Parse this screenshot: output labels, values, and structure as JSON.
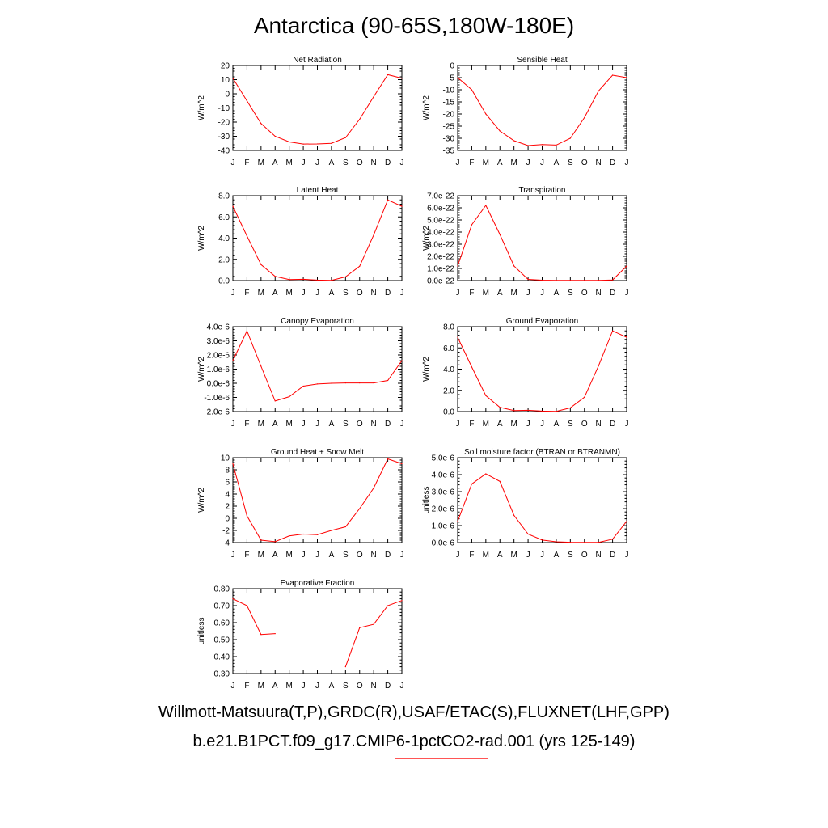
{
  "title": "Antarctica (90-65S,180W-180E)",
  "footer": {
    "line1": "Willmott-Matsuura(T,P),GRDC(R),USAF/ETAC(S),FLUXNET(LHF,GPP)",
    "line2": "b.e21.B1PCT.f09_g17.CMIP6-1pctCO2-rad.001 (yrs 125-149)"
  },
  "colors": {
    "series": "#ff0000",
    "axes": "#000000",
    "obs_legend": "#6060ff",
    "model_legend": "#ff5555"
  },
  "chart_data": [
    {
      "type": "line",
      "title": "Net Radiation",
      "ylabel": "W/m^2",
      "x": [
        "J",
        "F",
        "M",
        "A",
        "M",
        "J",
        "J",
        "A",
        "S",
        "O",
        "N",
        "D",
        "J"
      ],
      "ylim": [
        -40,
        20
      ],
      "yticks": [
        20,
        10,
        0,
        -10,
        -20,
        -30,
        -40
      ],
      "yticklabels": [
        "20",
        "10",
        "0",
        "-10",
        "-20",
        "-30",
        "-40"
      ],
      "series": [
        {
          "values": [
            11,
            -5,
            -21,
            -30,
            -34,
            -35.5,
            -35.4,
            -35,
            -31,
            -18,
            -2,
            13.5,
            11
          ]
        }
      ]
    },
    {
      "type": "line",
      "title": "Sensible Heat",
      "ylabel": "W/m^2",
      "x": [
        "J",
        "F",
        "M",
        "A",
        "M",
        "J",
        "J",
        "A",
        "S",
        "O",
        "N",
        "D",
        "J"
      ],
      "ylim": [
        -35,
        0
      ],
      "yticks": [
        0,
        -5,
        -10,
        -15,
        -20,
        -25,
        -30,
        -35
      ],
      "yticklabels": [
        "0",
        "-5",
        "-10",
        "-15",
        "-20",
        "-25",
        "-30",
        "-35"
      ],
      "series": [
        {
          "values": [
            -5,
            -10,
            -20,
            -27,
            -31,
            -33,
            -32.6,
            -32.8,
            -30,
            -21.5,
            -10.5,
            -4,
            -5
          ]
        }
      ]
    },
    {
      "type": "line",
      "title": "Latent Heat",
      "ylabel": "W/m^2",
      "x": [
        "J",
        "F",
        "M",
        "A",
        "M",
        "J",
        "J",
        "A",
        "S",
        "O",
        "N",
        "D",
        "J"
      ],
      "ylim": [
        0,
        8
      ],
      "yticks": [
        8,
        6,
        4,
        2,
        0
      ],
      "yticklabels": [
        "8.0",
        "6.0",
        "4.0",
        "2.0",
        "0.0"
      ],
      "series": [
        {
          "values": [
            7.0,
            4.2,
            1.5,
            0.4,
            0.1,
            0.12,
            0.05,
            0.02,
            0.35,
            1.35,
            4.3,
            7.6,
            7.0
          ]
        }
      ]
    },
    {
      "type": "line",
      "title": "Transpiration",
      "ylabel": "W/m^2",
      "x": [
        "J",
        "F",
        "M",
        "A",
        "M",
        "J",
        "J",
        "A",
        "S",
        "O",
        "N",
        "D",
        "J"
      ],
      "ylim": [
        0,
        7e-22
      ],
      "yticks": [
        7e-22,
        6e-22,
        5e-22,
        4e-22,
        3e-22,
        2e-22,
        1e-22,
        0
      ],
      "yticklabels": [
        "7.0e-22",
        "6.0e-22",
        "5.0e-22",
        "4.0e-22",
        "3.0e-22",
        "2.0e-22",
        "1.0e-22",
        "0.0e-22"
      ],
      "series": [
        {
          "values": [
            1.2e-22,
            4.6e-22,
            6.2e-22,
            3.8e-22,
            1.2e-22,
            1e-23,
            3e-24,
            2e-24,
            2e-24,
            2e-24,
            2e-24,
            5e-24,
            1.2e-22
          ]
        }
      ]
    },
    {
      "type": "line",
      "title": "Canopy Evaporation",
      "ylabel": "W/m^2",
      "x": [
        "J",
        "F",
        "M",
        "A",
        "M",
        "J",
        "J",
        "A",
        "S",
        "O",
        "N",
        "D",
        "J"
      ],
      "ylim": [
        -2e-06,
        4e-06
      ],
      "yticks": [
        4e-06,
        3e-06,
        2e-06,
        1e-06,
        0,
        -1e-06,
        -2e-06
      ],
      "yticklabels": [
        "4.0e-6",
        "3.0e-6",
        "2.0e-6",
        "1.0e-6",
        "0.0e-6",
        "-1.0e-6",
        "-2.0e-6"
      ],
      "series": [
        {
          "values": [
            1.6e-06,
            3.7e-06,
            1.2e-06,
            -1.25e-06,
            -9.5e-07,
            -2e-07,
            -5e-08,
            0.0,
            2e-08,
            2e-08,
            2e-08,
            2e-07,
            1.6e-06
          ]
        }
      ]
    },
    {
      "type": "line",
      "title": "Ground Evaporation",
      "ylabel": "W/m^2",
      "x": [
        "J",
        "F",
        "M",
        "A",
        "M",
        "J",
        "J",
        "A",
        "S",
        "O",
        "N",
        "D",
        "J"
      ],
      "ylim": [
        0,
        8
      ],
      "yticks": [
        8,
        6,
        4,
        2,
        0
      ],
      "yticklabels": [
        "8.0",
        "6.0",
        "4.0",
        "2.0",
        "0.0"
      ],
      "series": [
        {
          "values": [
            7.0,
            4.2,
            1.5,
            0.4,
            0.1,
            0.12,
            0.05,
            0.02,
            0.35,
            1.35,
            4.3,
            7.6,
            7.0
          ]
        }
      ]
    },
    {
      "type": "line",
      "title": "Ground Heat + Snow Melt",
      "ylabel": "W/m^2",
      "x": [
        "J",
        "F",
        "M",
        "A",
        "M",
        "J",
        "J",
        "A",
        "S",
        "O",
        "N",
        "D",
        "J"
      ],
      "ylim": [
        -4,
        10
      ],
      "yticks": [
        10,
        8,
        6,
        4,
        2,
        0,
        -2,
        -4
      ],
      "yticklabels": [
        "10",
        "8",
        "6",
        "4",
        "2",
        "0",
        "-2",
        "-4"
      ],
      "series": [
        {
          "values": [
            9.0,
            0.4,
            -3.6,
            -3.85,
            -2.9,
            -2.6,
            -2.7,
            -2.0,
            -1.4,
            1.6,
            5.0,
            9.8,
            9.0
          ]
        }
      ]
    },
    {
      "type": "line",
      "title": "Soil moisture factor (BTRAN or BTRANMN)",
      "ylabel": "unitless",
      "x": [
        "J",
        "F",
        "M",
        "A",
        "M",
        "J",
        "J",
        "A",
        "S",
        "O",
        "N",
        "D",
        "J"
      ],
      "ylim": [
        0,
        5e-06
      ],
      "yticks": [
        5e-06,
        4e-06,
        3e-06,
        2e-06,
        1e-06,
        0
      ],
      "yticklabels": [
        "5.0e-6",
        "4.0e-6",
        "3.0e-6",
        "2.0e-6",
        "1.0e-6",
        "0.0e-6"
      ],
      "series": [
        {
          "values": [
            1.25e-06,
            3.45e-06,
            4.05e-06,
            3.6e-06,
            1.6e-06,
            5e-07,
            1.5e-07,
            5e-08,
            2e-08,
            1e-08,
            1e-08,
            2e-07,
            1.25e-06
          ]
        }
      ]
    },
    {
      "type": "line",
      "title": "Evaporative Fraction",
      "ylabel": "unitless",
      "x": [
        "J",
        "F",
        "M",
        "A",
        "M",
        "J",
        "J",
        "A",
        "S",
        "O",
        "N",
        "D",
        "J"
      ],
      "ylim": [
        0.3,
        0.8
      ],
      "yticks": [
        0.8,
        0.7,
        0.6,
        0.5,
        0.4,
        0.3
      ],
      "yticklabels": [
        "0.80",
        "0.70",
        "0.60",
        "0.50",
        "0.40",
        "0.30"
      ],
      "series": [
        {
          "values": [
            0.74,
            0.7,
            0.53,
            0.535,
            null,
            null,
            null,
            null,
            0.34,
            0.57,
            0.59,
            0.7,
            0.73
          ]
        }
      ]
    }
  ]
}
